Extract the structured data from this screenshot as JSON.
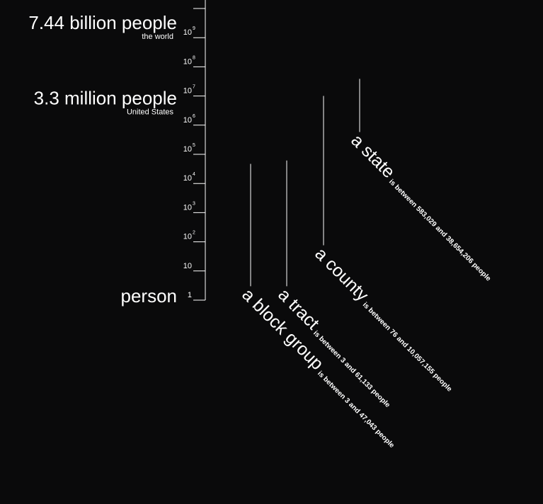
{
  "chart_data": {
    "type": "bar",
    "y_scale": "log10",
    "ylim": [
      1,
      1000000000
    ],
    "y_ticks": [
      {
        "label": "1",
        "exp": ""
      },
      {
        "label": "10",
        "exp": ""
      },
      {
        "label": "10",
        "exp": "2"
      },
      {
        "label": "10",
        "exp": "3"
      },
      {
        "label": "10",
        "exp": "4"
      },
      {
        "label": "10",
        "exp": "5"
      },
      {
        "label": "10",
        "exp": "6"
      },
      {
        "label": "10",
        "exp": "7"
      },
      {
        "label": "10",
        "exp": "8"
      },
      {
        "label": "10",
        "exp": "9"
      }
    ],
    "reference_labels": [
      {
        "value": 1,
        "label": "person",
        "sublabel": ""
      },
      {
        "value": 3300000,
        "label": "3.3 million people",
        "sublabel": "United States"
      },
      {
        "value": 7440000000,
        "label": "7.44 billion people",
        "sublabel": "the world"
      }
    ],
    "series": [
      {
        "name": "a block group",
        "min": 3,
        "max": 47043,
        "range_text": "is between 3 and 47,043 people"
      },
      {
        "name": "a tract",
        "min": 3,
        "max": 61133,
        "range_text": "is between 3 and 61,133 people"
      },
      {
        "name": "a county",
        "min": 76,
        "max": 10057155,
        "range_text": "is between 76 and 10,057,155 people"
      },
      {
        "name": "a state",
        "min": 583029,
        "max": 38654206,
        "range_text": "is between 583,029 and 38,654,206 people"
      }
    ]
  },
  "colors": {
    "background": "#0a0a0b",
    "foreground": "#ffffff"
  }
}
